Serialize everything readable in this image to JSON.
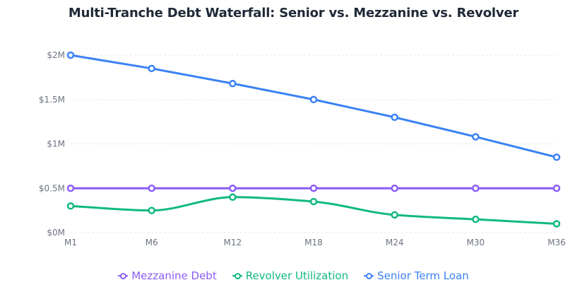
{
  "chart_data": {
    "type": "line",
    "title": "Multi-Tranche Debt Waterfall: Senior vs. Mezzanine vs. Revolver",
    "categories": [
      "M1",
      "M6",
      "M12",
      "M18",
      "M24",
      "M30",
      "M36"
    ],
    "y_ticks": [
      "$0M",
      "$0.5M",
      "$1M",
      "$1.5M",
      "$2M"
    ],
    "y_tick_values": [
      0,
      500000,
      1000000,
      1500000,
      2000000
    ],
    "ylim": [
      0,
      2000000
    ],
    "grid": true,
    "legend_position": "bottom",
    "series": [
      {
        "name": "Mezzanine Debt",
        "color": "#8b5cf6",
        "curve": "smooth",
        "values": [
          500000,
          500000,
          500000,
          500000,
          500000,
          500000,
          500000
        ]
      },
      {
        "name": "Revolver Utilization",
        "color": "#10b981",
        "curve": "smooth",
        "values": [
          300000,
          250000,
          400000,
          350000,
          200000,
          150000,
          100000
        ]
      },
      {
        "name": "Senior Term Loan",
        "color": "#3b82f6",
        "curve": "linear",
        "values": [
          2000000,
          1850000,
          1680000,
          1500000,
          1300000,
          1080000,
          850000
        ]
      }
    ]
  }
}
